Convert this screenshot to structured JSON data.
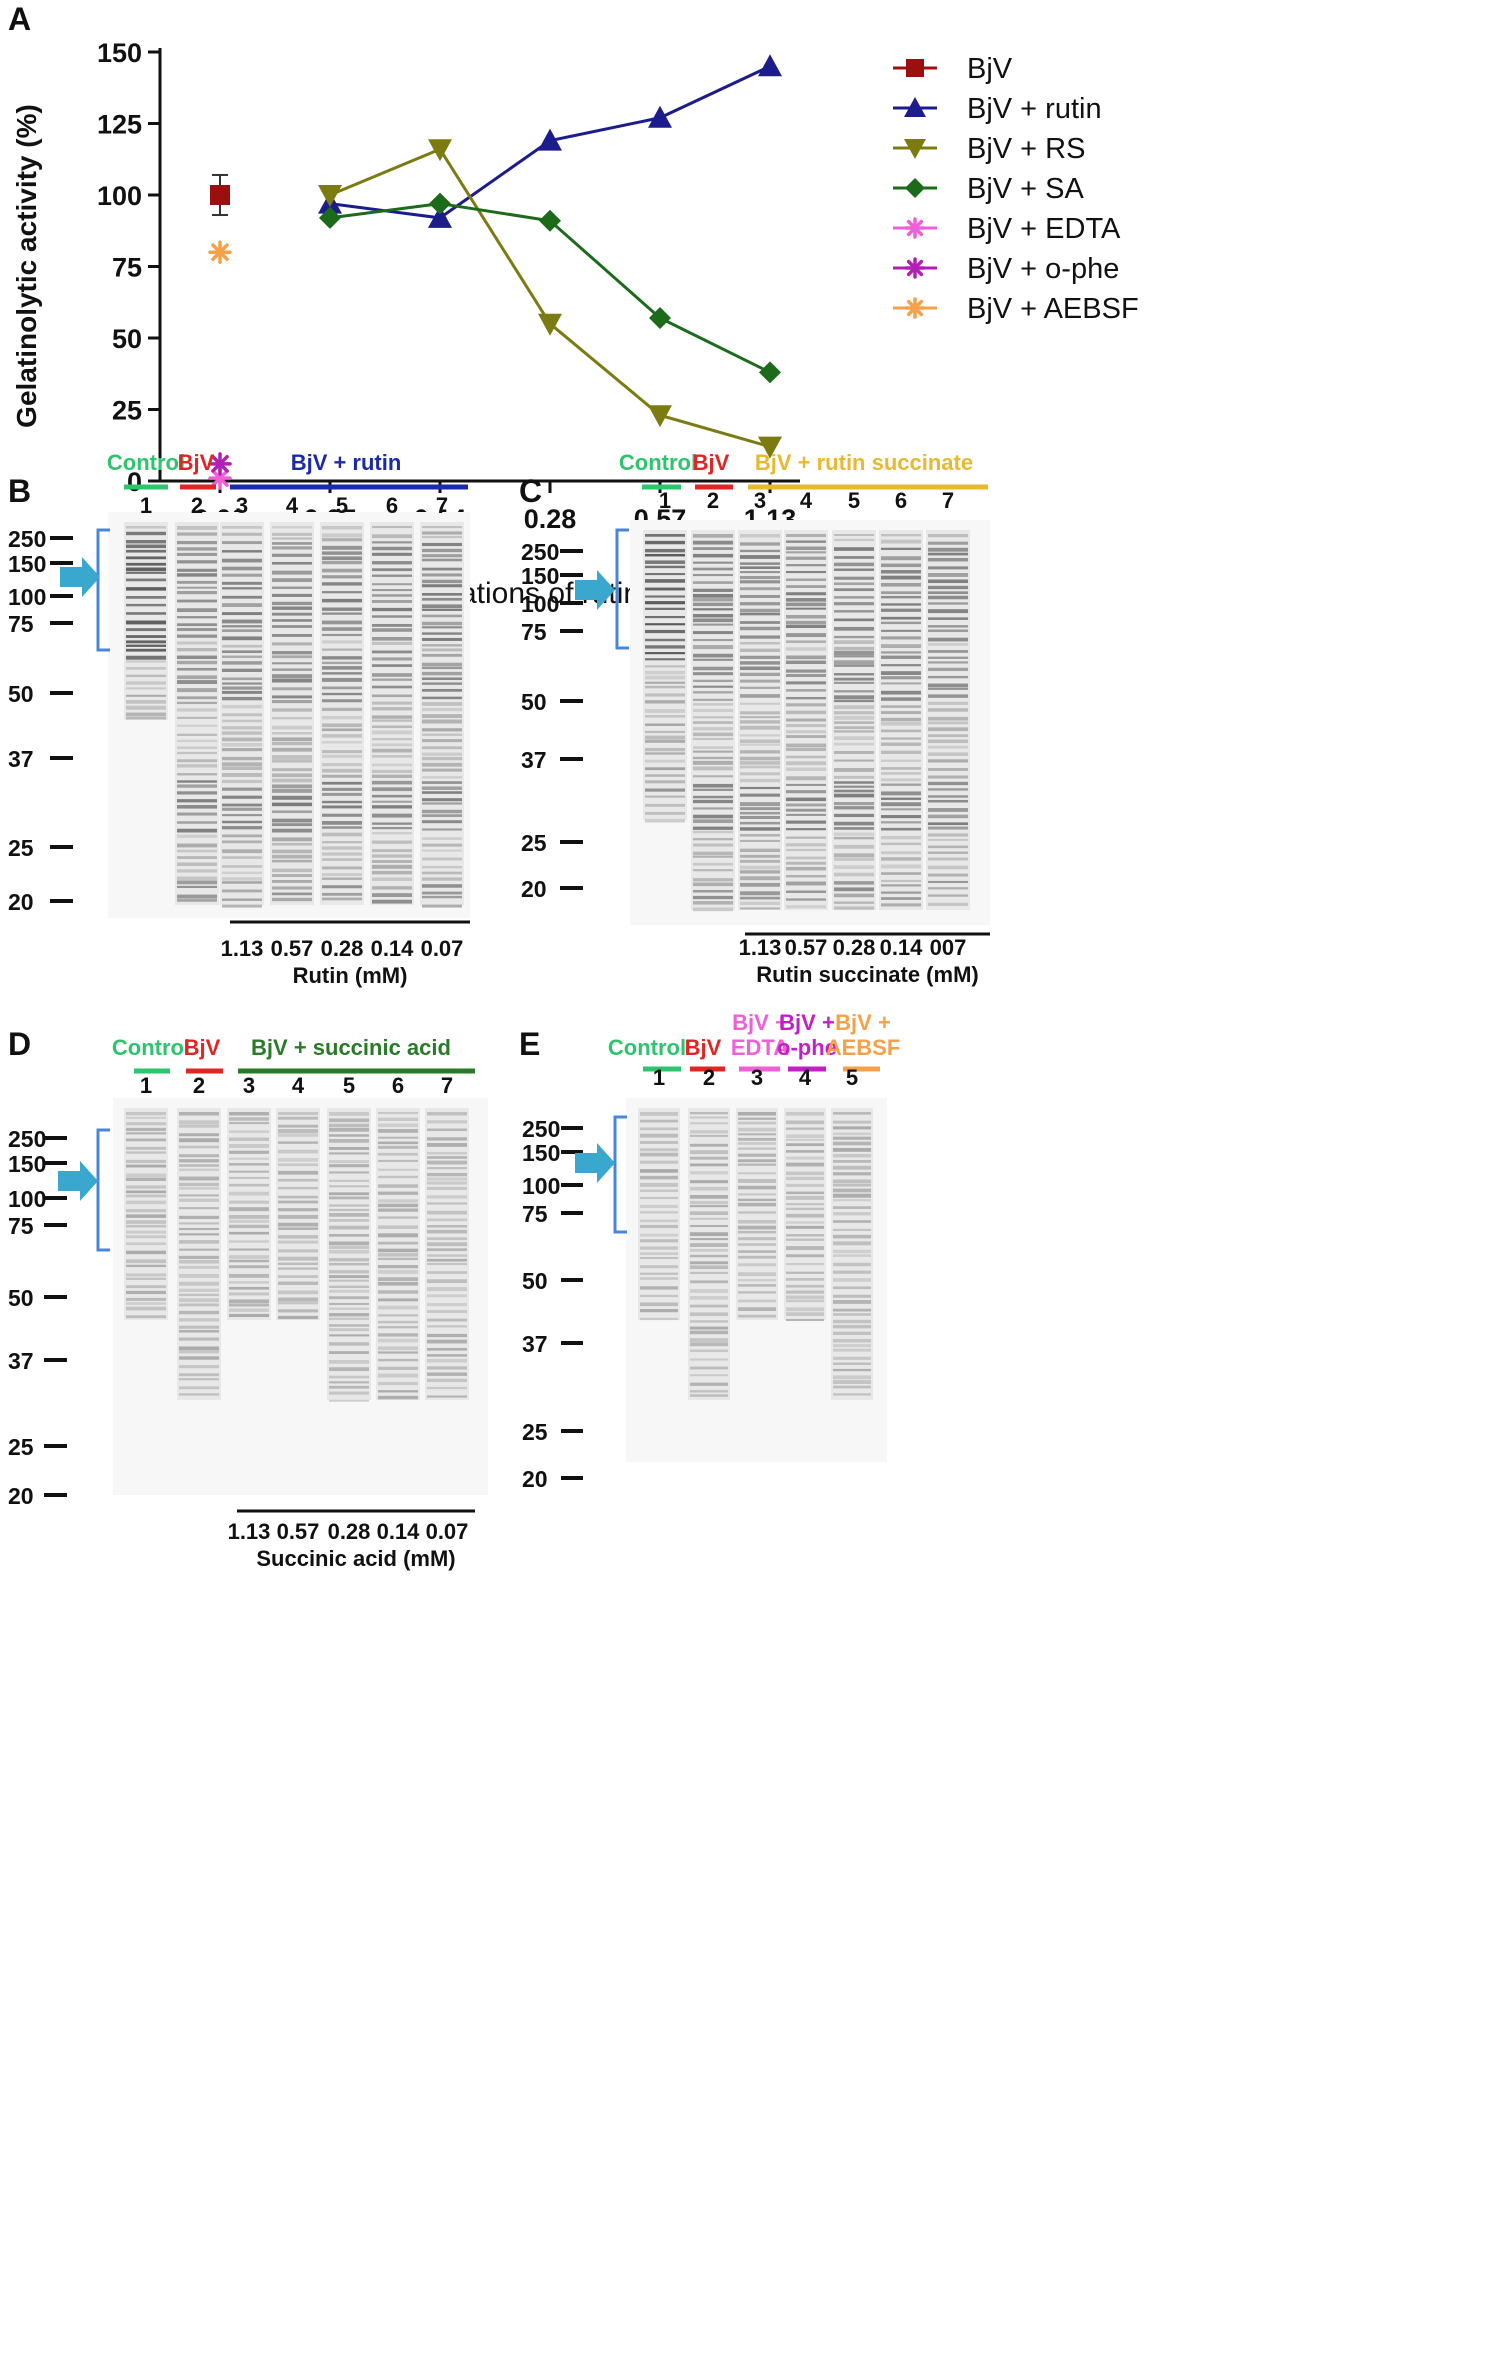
{
  "panels": {
    "A": {
      "letter": "A",
      "chart_data": {
        "type": "line",
        "ylabel": "Gelatinolytic activity (%)",
        "xlabel": "Final concentrations of rutin (mM)",
        "categories": [
          "0.00",
          "0.07",
          "0.14",
          "0.28",
          "0.57",
          "1.13"
        ],
        "yticks": [
          "0",
          "25",
          "50",
          "75",
          "100",
          "125",
          "150"
        ],
        "ylim": [
          0,
          150
        ],
        "legend_position": "right",
        "series": [
          {
            "name": "BjV",
            "marker": "square",
            "color": "#9b0f0f",
            "values": [
              100,
              null,
              null,
              null,
              null,
              null
            ],
            "error": [
              7,
              null,
              null,
              null,
              null,
              null
            ]
          },
          {
            "name": "BjV + rutin",
            "marker": "triangle-up",
            "color": "#1c1c8c",
            "values": [
              null,
              97,
              92,
              119,
              127,
              145
            ]
          },
          {
            "name": "BjV + RS",
            "marker": "triangle-down",
            "color": "#7b7b12",
            "values": [
              null,
              100,
              116,
              55,
              23,
              12
            ]
          },
          {
            "name": "BjV + SA",
            "marker": "diamond",
            "color": "#1b6b1b",
            "values": [
              null,
              92,
              97,
              91,
              57,
              38
            ]
          },
          {
            "name": "BjV + EDTA",
            "marker": "asterisk",
            "color": "#ef5fd8",
            "values": [
              1,
              null,
              null,
              null,
              null,
              null
            ]
          },
          {
            "name": "BjV + o-phe",
            "marker": "asterisk",
            "color": "#b11fb4",
            "values": [
              6,
              null,
              null,
              null,
              null,
              null
            ]
          },
          {
            "name": "BjV + AEBSF",
            "marker": "asterisk",
            "color": "#f5a14a",
            "values": [
              80,
              null,
              null,
              null,
              null,
              null
            ]
          }
        ]
      }
    },
    "B": {
      "letter": "B",
      "markers": [
        "250",
        "150",
        "100",
        "75",
        "50",
        "37",
        "25",
        "20"
      ],
      "lane_numbers": [
        "1",
        "2",
        "3",
        "4",
        "5",
        "6",
        "7"
      ],
      "groups": [
        {
          "label": "Control",
          "color": "#2ec46e"
        },
        {
          "label": "BjV",
          "color": "#e02525"
        },
        {
          "label": "BjV + rutin",
          "color": "#1b2aa8"
        }
      ],
      "conc_values": [
        "1.13",
        "0.57",
        "0.28",
        "0.14",
        "0.07"
      ],
      "conc_label": "Rutin (mM)"
    },
    "C": {
      "letter": "C",
      "markers": [
        "250",
        "150",
        "100",
        "75",
        "50",
        "37",
        "25",
        "20"
      ],
      "lane_numbers": [
        "1",
        "2",
        "3",
        "4",
        "5",
        "6",
        "7"
      ],
      "groups": [
        {
          "label": "Control",
          "color": "#2ec46e"
        },
        {
          "label": "BjV",
          "color": "#e02525"
        },
        {
          "label": "BjV + rutin succinate",
          "color": "#e8b830"
        }
      ],
      "conc_values": [
        "1.13",
        "0.57",
        "0.28",
        "0.14",
        "007"
      ],
      "conc_label": "Rutin succinate (mM)"
    },
    "D": {
      "letter": "D",
      "markers": [
        "250",
        "150",
        "100",
        "75",
        "50",
        "37",
        "25",
        "20"
      ],
      "lane_numbers": [
        "1",
        "2",
        "3",
        "4",
        "5",
        "6",
        "7"
      ],
      "groups": [
        {
          "label": "Control",
          "color": "#2ec46e"
        },
        {
          "label": "BjV",
          "color": "#e02525"
        },
        {
          "label": "BjV + succinic acid",
          "color": "#2a7a2a"
        }
      ],
      "conc_values": [
        "1.13",
        "0.57",
        "0.28",
        "0.14",
        "0.07"
      ],
      "conc_label": "Succinic acid (mM)"
    },
    "E": {
      "letter": "E",
      "markers": [
        "250",
        "150",
        "100",
        "75",
        "50",
        "37",
        "25",
        "20"
      ],
      "lane_numbers": [
        "1",
        "2",
        "3",
        "4",
        "5"
      ],
      "groups": [
        {
          "label": "Control",
          "color": "#2ec46e"
        },
        {
          "label": "BjV",
          "color": "#e02525"
        },
        {
          "label": "BjV +\nEDTA",
          "color": "#ef5fd8"
        },
        {
          "label": "BjV +\no-phe",
          "color": "#c21fc6"
        },
        {
          "label": "BjV +\nAEBSF",
          "color": "#f5a14a"
        }
      ]
    }
  }
}
